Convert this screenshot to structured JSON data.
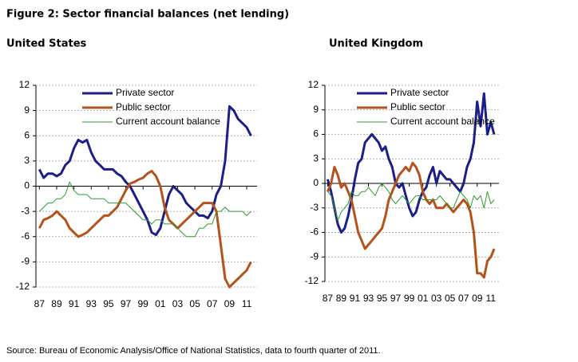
{
  "title": "Figure 2: Sector financial balances (net lending)",
  "source": "Source:  Bureau of Economic Analysis/Office  of National Statistics, data to fourth quarter of 2011.",
  "chart_data": [
    {
      "type": "line",
      "title": "United States",
      "x": [
        1987,
        1987.5,
        1988,
        1988.5,
        1989,
        1989.5,
        1990,
        1990.5,
        1991,
        1991.5,
        1992,
        1992.5,
        1993,
        1993.5,
        1994,
        1994.5,
        1995,
        1995.5,
        1996,
        1996.5,
        1997,
        1997.5,
        1998,
        1998.5,
        1999,
        1999.5,
        2000,
        2000.5,
        2001,
        2001.5,
        2002,
        2002.5,
        2003,
        2003.5,
        2004,
        2004.5,
        2005,
        2005.5,
        2006,
        2006.5,
        2007,
        2007.5,
        2008,
        2008.5,
        2009,
        2009.5,
        2010,
        2010.5,
        2011,
        2011.5
      ],
      "series": [
        {
          "name": "Private sector",
          "color": "#1b1f8a",
          "values": [
            2,
            1,
            1.5,
            1.5,
            1.2,
            1.5,
            2.5,
            3,
            4.5,
            5.5,
            5.2,
            5.5,
            4,
            3,
            2.5,
            2,
            2,
            2,
            1.5,
            1.2,
            0.5,
            0,
            -1,
            -2,
            -3,
            -4,
            -5.5,
            -5.8,
            -5,
            -3,
            -1,
            0,
            -0.5,
            -1,
            -2,
            -2.5,
            -3,
            -3.5,
            -3.5,
            -3.8,
            -3,
            -1,
            0,
            3,
            9.5,
            9,
            8,
            7.5,
            7,
            6
          ]
        },
        {
          "name": "Public sector",
          "color": "#b5521b",
          "values": [
            -5,
            -4,
            -3.8,
            -3.5,
            -3,
            -3.5,
            -4,
            -5,
            -5.5,
            -6,
            -5.8,
            -5.5,
            -5,
            -4.5,
            -4,
            -3.5,
            -3.5,
            -3,
            -2.5,
            -1.5,
            -0.5,
            0.3,
            0.5,
            0.8,
            1,
            1.5,
            1.8,
            1.2,
            0,
            -2.5,
            -4,
            -4.5,
            -5,
            -4.5,
            -4,
            -3.5,
            -3,
            -2.5,
            -2,
            -2,
            -2,
            -3,
            -7,
            -11,
            -12,
            -11.5,
            -11,
            -10.5,
            -10,
            -9
          ]
        },
        {
          "name": "Current account balance",
          "color": "#2e9a2e",
          "values": [
            -3,
            -2.5,
            -2,
            -2,
            -1.5,
            -1.5,
            -1,
            0.5,
            -0.5,
            -1,
            -1,
            -1,
            -1.5,
            -1.5,
            -1.5,
            -1.5,
            -2,
            -2,
            -2,
            -2,
            -2,
            -2.5,
            -3,
            -3.5,
            -4,
            -4,
            -4.5,
            -4,
            -4,
            -4.5,
            -4.5,
            -4.5,
            -5,
            -5.5,
            -6,
            -6,
            -6,
            -5,
            -5,
            -4.5,
            -4.5,
            -3,
            -3,
            -2.5,
            -3,
            -3,
            -3,
            -3,
            -3.5,
            -3
          ]
        }
      ],
      "xlim": [
        1986.6,
        2012.2
      ],
      "xticks": [
        {
          "value": 1987,
          "label": "87"
        },
        {
          "value": 1989,
          "label": "89"
        },
        {
          "value": 1991,
          "label": "91"
        },
        {
          "value": 1993,
          "label": "93"
        },
        {
          "value": 1995,
          "label": "95"
        },
        {
          "value": 1997,
          "label": "97"
        },
        {
          "value": 1999,
          "label": "99"
        },
        {
          "value": 2001,
          "label": "01"
        },
        {
          "value": 2003,
          "label": "03"
        },
        {
          "value": 2005,
          "label": "05"
        },
        {
          "value": 2007,
          "label": "07"
        },
        {
          "value": 2009,
          "label": "09"
        },
        {
          "value": 2011,
          "label": "11"
        }
      ],
      "ylim": [
        -12,
        12
      ],
      "yticks": [
        12,
        9,
        6,
        3,
        0,
        -3,
        -6,
        -9,
        -12
      ],
      "grid": true,
      "legend": "upper left"
    },
    {
      "type": "line",
      "title": "United Kingdom",
      "x": [
        1987,
        1987.5,
        1988,
        1988.5,
        1989,
        1989.5,
        1990,
        1990.5,
        1991,
        1991.5,
        1992,
        1992.5,
        1993,
        1993.5,
        1994,
        1994.5,
        1995,
        1995.5,
        1996,
        1996.5,
        1997,
        1997.5,
        1998,
        1998.5,
        1999,
        1999.5,
        2000,
        2000.5,
        2001,
        2001.5,
        2002,
        2002.5,
        2003,
        2003.5,
        2004,
        2004.5,
        2005,
        2005.5,
        2006,
        2006.5,
        2007,
        2007.5,
        2008,
        2008.5,
        2009,
        2009.5,
        2010,
        2010.5,
        2011,
        2011.5
      ],
      "series": [
        {
          "name": "Private sector",
          "color": "#1b1f8a",
          "values": [
            0.5,
            -1,
            -3,
            -5,
            -6,
            -5.5,
            -4,
            -2,
            0.5,
            2.5,
            3,
            5,
            5.5,
            6,
            5.5,
            5,
            4,
            4.5,
            3,
            2,
            0,
            -0.5,
            0,
            -1.5,
            -3,
            -4,
            -3.5,
            -2,
            -1,
            -0.5,
            1,
            2,
            0,
            1.5,
            1,
            0.5,
            0.5,
            0,
            -0.5,
            -1,
            0,
            2,
            3,
            5,
            10,
            7,
            11,
            6,
            7.5,
            6
          ]
        },
        {
          "name": "Public sector",
          "color": "#b5521b",
          "values": [
            -1,
            0,
            2,
            1,
            -0.5,
            0,
            -1,
            -2,
            -4,
            -6,
            -7,
            -8,
            -7.5,
            -7,
            -6.5,
            -6,
            -5.5,
            -4,
            -2,
            -1,
            0,
            1,
            1.5,
            2,
            1.5,
            2.5,
            2,
            1,
            -1,
            -2,
            -2.5,
            -2,
            -3,
            -3,
            -3,
            -2.5,
            -3,
            -3.5,
            -3,
            -2.5,
            -2,
            -2.5,
            -3.5,
            -6,
            -11,
            -11,
            -11.5,
            -9.5,
            -9,
            -8
          ]
        },
        {
          "name": "Current account balance",
          "color": "#2e9a2e",
          "values": [
            -1,
            -1.5,
            -3,
            -4.5,
            -3.5,
            -3,
            -2.5,
            -1,
            -1.5,
            -1.5,
            -1,
            -1,
            -0.5,
            -1,
            -1.5,
            -0.5,
            0,
            -0.5,
            -1,
            -2,
            -2.5,
            -2,
            -1.5,
            -2,
            -2.5,
            -2,
            -1.5,
            -1.5,
            -2,
            -2,
            -2,
            -2,
            -2,
            -1.5,
            -2,
            -2.5,
            -3,
            -3,
            -2,
            -1,
            -1.5,
            -2,
            -3,
            -1.5,
            -2,
            -1.5,
            -3,
            -1,
            -2.5,
            -2
          ]
        }
      ],
      "xlim": [
        1986.6,
        2012.2
      ],
      "xticks": [
        {
          "value": 1987,
          "label": "87"
        },
        {
          "value": 1989,
          "label": "89"
        },
        {
          "value": 1991,
          "label": "91"
        },
        {
          "value": 1993,
          "label": "93"
        },
        {
          "value": 1995,
          "label": "95"
        },
        {
          "value": 1997,
          "label": "97"
        },
        {
          "value": 1999,
          "label": "99"
        },
        {
          "value": 2001,
          "label": "01"
        },
        {
          "value": 2003,
          "label": "03"
        },
        {
          "value": 2005,
          "label": "05"
        },
        {
          "value": 2007,
          "label": "07"
        },
        {
          "value": 2009,
          "label": "09"
        },
        {
          "value": 2011,
          "label": "11"
        }
      ],
      "ylim": [
        -12,
        12
      ],
      "yticks": [
        12,
        9,
        6,
        3,
        0,
        -3,
        -6,
        -9,
        -12
      ],
      "grid": true,
      "legend": "upper left"
    }
  ]
}
